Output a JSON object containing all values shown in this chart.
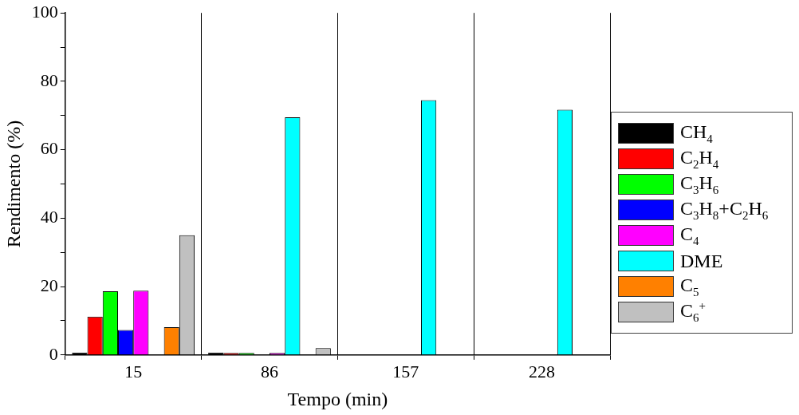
{
  "chart_data": {
    "type": "bar",
    "xlabel": "Tempo (min)",
    "ylabel": "Rendimento (%)",
    "categories": [
      "15",
      "86",
      "157",
      "228"
    ],
    "series": [
      {
        "name": "CH$_{4}$",
        "color": "#000000",
        "values": [
          0.7,
          0.7,
          null,
          null
        ]
      },
      {
        "name": "C$_{2}$H$_{4}$",
        "color": "#ff0000",
        "values": [
          11.2,
          0.6,
          null,
          0
        ]
      },
      {
        "name": "C$_{3}$H$_{6}$",
        "color": "#00ff00",
        "values": [
          18.6,
          0.6,
          0,
          0
        ]
      },
      {
        "name": "C$_{3}$H$_{8}$+C$_{2}$H$_{6}$",
        "color": "#0000ff",
        "values": [
          7.3,
          null,
          0,
          0
        ]
      },
      {
        "name": "C$_{4}$",
        "color": "#ff00ff",
        "values": [
          18.8,
          0.6,
          0,
          0
        ]
      },
      {
        "name": "DME",
        "color": "#00ffff",
        "values": [
          0,
          69.5,
          74.5,
          71.7
        ]
      },
      {
        "name": "C$_{5}$",
        "color": "#ff8000",
        "values": [
          8.1,
          null,
          0,
          0
        ]
      },
      {
        "name": "C$_{6}$$^{+}$",
        "color": "#c0c0c0",
        "values": [
          35,
          2,
          0,
          0
        ]
      }
    ],
    "ylim": [
      0,
      100
    ],
    "yticks": [
      0,
      {
        "value": 10,
        "label": null
      },
      20,
      {
        "value": 30,
        "label": null
      },
      40,
      {
        "value": 50,
        "label": null
      },
      60,
      {
        "value": 70,
        "label": null
      },
      80,
      {
        "value": 90,
        "label": null
      },
      100
    ],
    "grid": "x",
    "legend": "right"
  }
}
